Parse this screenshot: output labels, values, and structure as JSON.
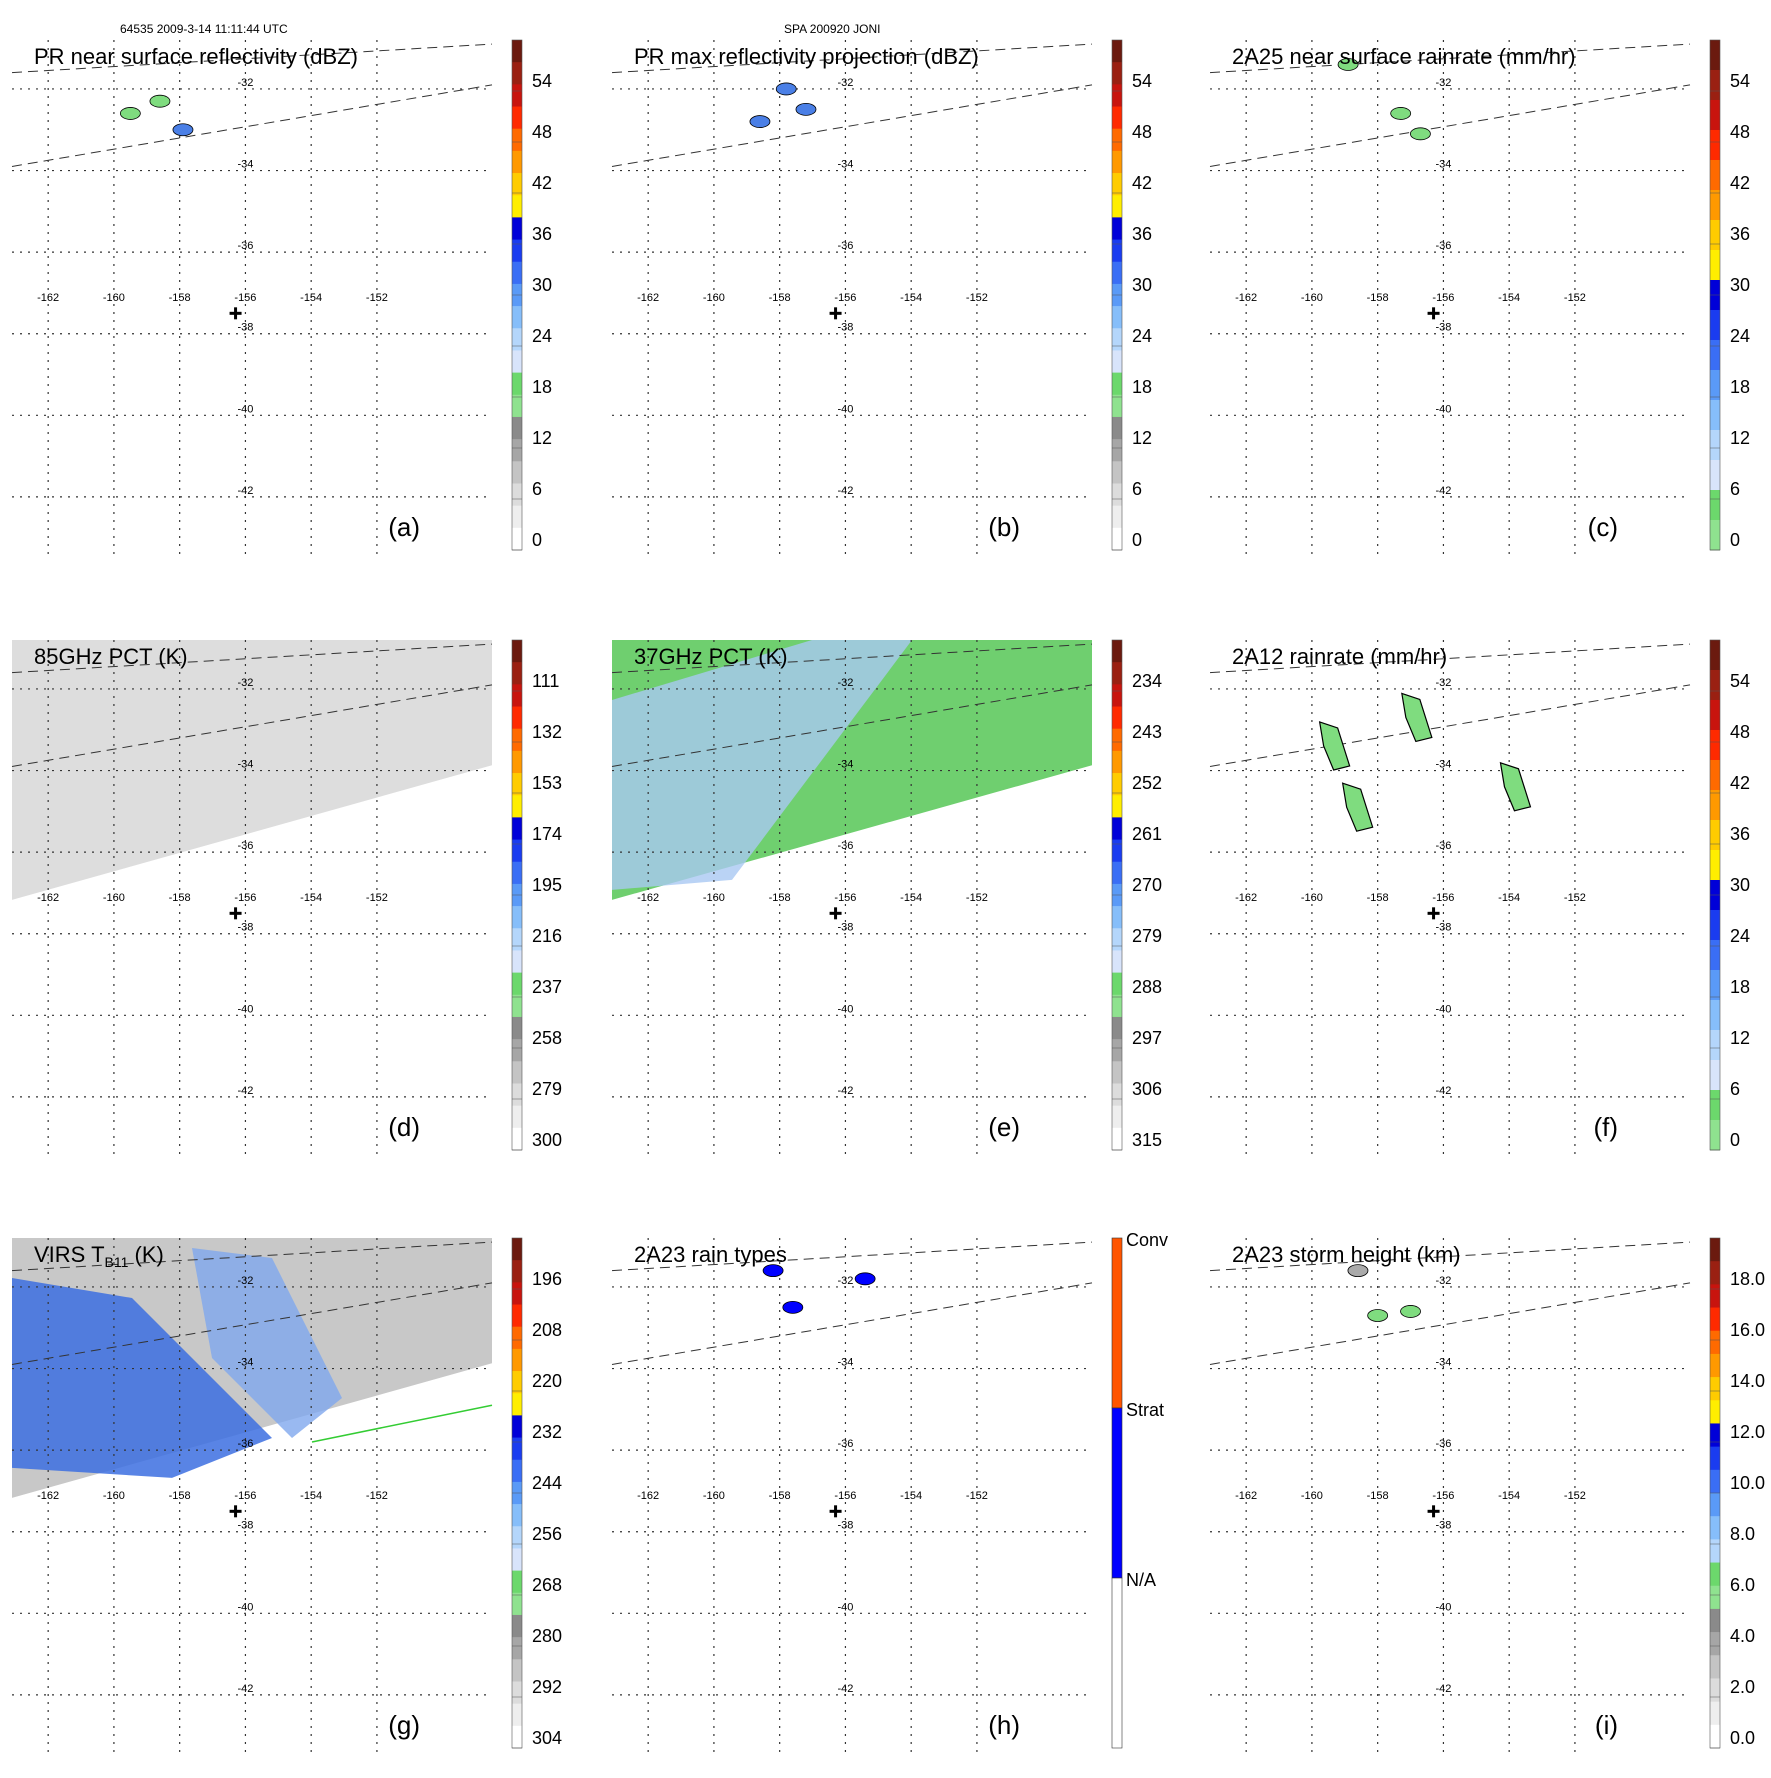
{
  "header": {
    "orbit_info": "64535 2009-3-14 11:11:44 UTC",
    "storm_info": "SPA 200920 JONI"
  },
  "map": {
    "lon_labels": [
      "-162",
      "-160",
      "-158",
      "-156",
      "-154",
      "-152"
    ],
    "lat_labels": [
      "-32",
      "-34",
      "-36",
      "-38",
      "-40",
      "-42"
    ],
    "lon_values": [
      -162,
      -160,
      -158,
      -156,
      -154,
      -152
    ],
    "lat_values": [
      -32,
      -34,
      -36,
      -38,
      -40,
      -42
    ],
    "storm_center": {
      "lon": -156.3,
      "lat": -37.5
    }
  },
  "chart_data": [
    {
      "id": "a",
      "type": "heatmap",
      "title": "PR near surface reflectivity (dBZ)",
      "letter": "(a)",
      "colorbar": {
        "labels": [
          "54",
          "48",
          "42",
          "36",
          "30",
          "24",
          "18",
          "12",
          "6",
          "0"
        ],
        "palette": "dbz"
      },
      "features": [
        {
          "kind": "echo",
          "color": "#7fdc7f",
          "lon": -158.6,
          "lat": -32.3
        },
        {
          "kind": "echo",
          "color": "#4a7fe6",
          "lon": -157.9,
          "lat": -33.0
        },
        {
          "kind": "echo",
          "color": "#7fdc7f",
          "lon": -159.5,
          "lat": -32.6
        }
      ]
    },
    {
      "id": "b",
      "type": "heatmap",
      "title": "PR max reflectivity projection (dBZ)",
      "letter": "(b)",
      "colorbar": {
        "labels": [
          "54",
          "48",
          "42",
          "36",
          "30",
          "24",
          "18",
          "12",
          "6",
          "0"
        ],
        "palette": "dbz"
      },
      "features": [
        {
          "kind": "echo",
          "color": "#4a7fe6",
          "lon": -157.8,
          "lat": -32.0
        },
        {
          "kind": "echo",
          "color": "#4a7fe6",
          "lon": -157.2,
          "lat": -32.5
        },
        {
          "kind": "echo",
          "color": "#4a7fe6",
          "lon": -158.6,
          "lat": -32.8
        }
      ]
    },
    {
      "id": "c",
      "type": "heatmap",
      "title": "2A25 near surface rainrate (mm/hr)",
      "letter": "(c)",
      "colorbar": {
        "labels": [
          "54",
          "48",
          "42",
          "36",
          "30",
          "24",
          "18",
          "12",
          "6",
          "0"
        ],
        "palette": "rain"
      },
      "features": [
        {
          "kind": "echo",
          "color": "#7fdc7f",
          "lon": -158.9,
          "lat": -31.4
        },
        {
          "kind": "echo",
          "color": "#7fdc7f",
          "lon": -157.3,
          "lat": -32.6
        },
        {
          "kind": "echo",
          "color": "#7fdc7f",
          "lon": -156.7,
          "lat": -33.1
        }
      ]
    },
    {
      "id": "d",
      "type": "heatmap",
      "title": "85GHz PCT (K)",
      "letter": "(d)",
      "colorbar": {
        "labels": [
          "111",
          "132",
          "153",
          "174",
          "195",
          "216",
          "237",
          "258",
          "279",
          "300"
        ],
        "palette": "pct"
      },
      "swath": "gray"
    },
    {
      "id": "e",
      "type": "heatmap",
      "title": "37GHz PCT (K)",
      "letter": "(e)",
      "colorbar": {
        "labels": [
          "234",
          "243",
          "252",
          "261",
          "270",
          "279",
          "288",
          "297",
          "306",
          "315"
        ],
        "palette": "pct"
      },
      "swath": "green"
    },
    {
      "id": "f",
      "type": "heatmap",
      "title": "2A12 rainrate (mm/hr)",
      "letter": "(f)",
      "colorbar": {
        "labels": [
          "54",
          "48",
          "42",
          "36",
          "30",
          "24",
          "18",
          "12",
          "6",
          "0"
        ],
        "palette": "rain"
      },
      "features": [
        {
          "kind": "band",
          "color": "#7fdc7f",
          "lon": -156.9,
          "lat": -32.6
        },
        {
          "kind": "band",
          "color": "#7fdc7f",
          "lon": -153.9,
          "lat": -34.3
        },
        {
          "kind": "band",
          "color": "#7fdc7f",
          "lon": -158.7,
          "lat": -34.8
        },
        {
          "kind": "band",
          "color": "#7fdc7f",
          "lon": -159.4,
          "lat": -33.3
        }
      ]
    },
    {
      "id": "g",
      "type": "heatmap",
      "title": "VIRS T",
      "title_sub": "B11",
      "title_suffix": " (K)",
      "letter": "(g)",
      "colorbar": {
        "labels": [
          "196",
          "208",
          "220",
          "232",
          "244",
          "256",
          "268",
          "280",
          "292",
          "304"
        ],
        "palette": "ir"
      },
      "swath": "ir"
    },
    {
      "id": "h",
      "type": "heatmap",
      "title": "2A23 rain types",
      "letter": "(h)",
      "colorbar": {
        "categories": [
          "Conv",
          "Strat",
          "N/A"
        ],
        "colors": [
          "#ff5500",
          "#0000ff",
          "#ffffff"
        ]
      },
      "features": [
        {
          "kind": "echo",
          "color": "#0000ff",
          "lon": -158.2,
          "lat": -31.6
        },
        {
          "kind": "echo",
          "color": "#0000ff",
          "lon": -157.6,
          "lat": -32.5
        },
        {
          "kind": "echo",
          "color": "#0000ff",
          "lon": -155.4,
          "lat": -31.8
        }
      ]
    },
    {
      "id": "i",
      "type": "heatmap",
      "title": "2A23 storm height (km)",
      "letter": "(i)",
      "colorbar": {
        "labels": [
          "18.0",
          "16.0",
          "14.0",
          "12.0",
          "10.0",
          "8.0",
          "6.0",
          "4.0",
          "2.0",
          "0.0"
        ],
        "palette": "height"
      },
      "features": [
        {
          "kind": "echo",
          "color": "#7fdc7f",
          "lon": -158.0,
          "lat": -32.7
        },
        {
          "kind": "echo",
          "color": "#7fdc7f",
          "lon": -157.0,
          "lat": -32.6
        },
        {
          "kind": "echo",
          "color": "#aaaaaa",
          "lon": -158.6,
          "lat": -31.6
        }
      ]
    }
  ],
  "colors": {
    "dbz": [
      "#6b1a0f",
      "#9a2012",
      "#c8140e",
      "#ff2a00",
      "#ff6a00",
      "#ff9900",
      "#ffcc00",
      "#ffee00",
      "#0000d8",
      "#1a3cf0",
      "#3a6ef5",
      "#5a9af7",
      "#86befa",
      "#b4d6fb",
      "#d8e4fb",
      "#6cd86c",
      "#8fe28f",
      "#8a8a8a",
      "#a6a6a6",
      "#c4c4c4",
      "#dcdcdc",
      "#eeeeee",
      "#ffffff"
    ],
    "rain": [
      "#6b1a0f",
      "#9a2012",
      "#c8140e",
      "#ff2a00",
      "#ff6a00",
      "#ff9900",
      "#ffcc00",
      "#ffee00",
      "#0000d8",
      "#1a3cf0",
      "#3a6ef5",
      "#5a9af7",
      "#86befa",
      "#b4d6fb",
      "#d8e4fb",
      "#6cd86c",
      "#8fe28f"
    ],
    "height": [
      "#6b1a0f",
      "#9a2012",
      "#c8140e",
      "#ff2a00",
      "#ff6a00",
      "#ff9900",
      "#ffcc00",
      "#ffee00",
      "#0000d8",
      "#1a3cf0",
      "#3a6ef5",
      "#5a9af7",
      "#86befa",
      "#b4d6fb",
      "#6cd86c",
      "#8fe28f",
      "#8a8a8a",
      "#a6a6a6",
      "#c4c4c4",
      "#dcdcdc",
      "#eeeeee",
      "#ffffff"
    ],
    "swath_gray": "#dddddd",
    "swath_green": "#6fcf6f",
    "swath_blue": "#a9c8f3",
    "ir_blue": "#3c6fe0",
    "ir_gray": "#c8c8c8"
  }
}
